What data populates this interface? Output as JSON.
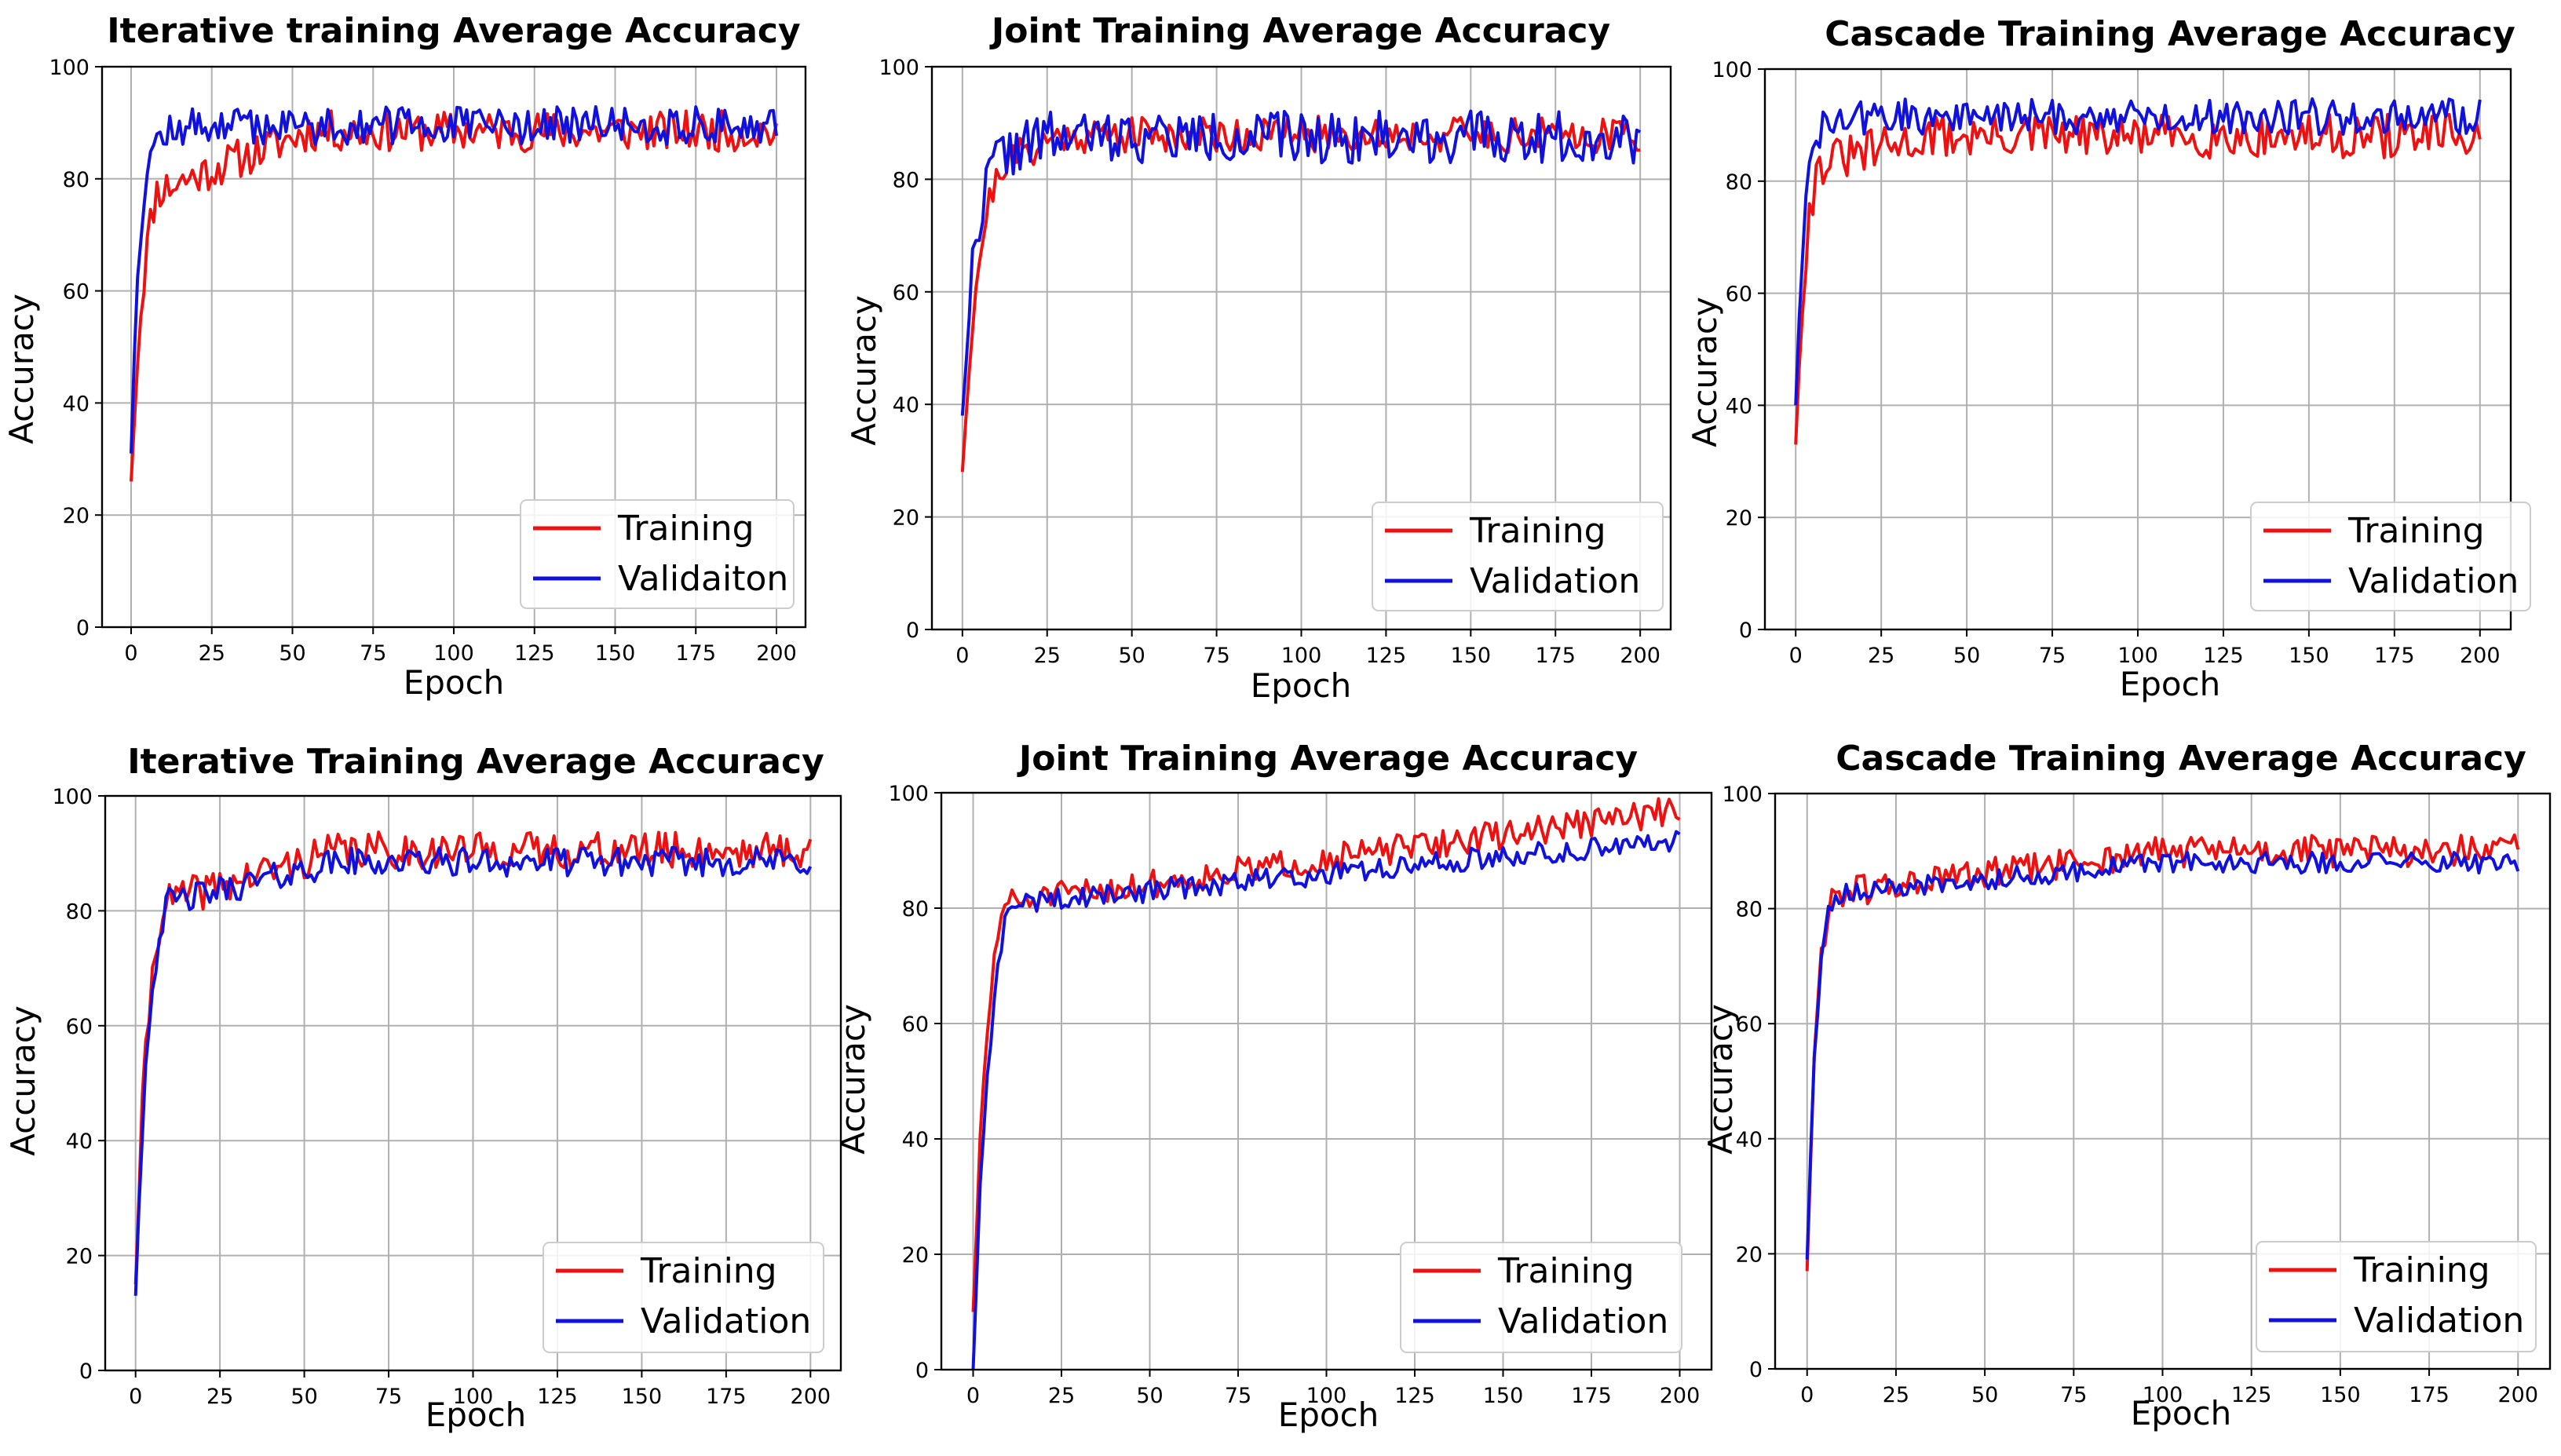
{
  "colors": {
    "training": "#ee1111",
    "validation": "#1111dd"
  },
  "chart_data": [
    {
      "type": "line",
      "title": "Iterative training Average Accuracy",
      "xlabel": "Epoch",
      "ylabel": "Accuracy",
      "xlim": [
        -9,
        209
      ],
      "ylim": [
        0,
        100
      ],
      "xticks": [
        0,
        25,
        50,
        75,
        100,
        125,
        150,
        175,
        200
      ],
      "yticks": [
        0,
        20,
        40,
        60,
        80,
        100
      ],
      "grid": true,
      "legend_position": "lower-right",
      "series": [
        {
          "name": "Training",
          "color": "#ee1111",
          "start": 26,
          "plateau": 88.5,
          "rate": 4.5,
          "early_level": 76,
          "early_span": 55,
          "noise": 2.6,
          "seed": 11
        },
        {
          "name": "Validaiton",
          "color": "#1111dd",
          "start": 31,
          "plateau": 89.5,
          "rate": 2.5,
          "early_level": 86,
          "early_span": 20,
          "noise": 2.4,
          "seed": 12
        }
      ]
    },
    {
      "type": "line",
      "title": "Joint Training Average Accuracy",
      "xlabel": "Epoch",
      "ylabel": "Accuracy",
      "xlim": [
        -9,
        209
      ],
      "ylim": [
        0,
        100
      ],
      "xticks": [
        0,
        25,
        50,
        75,
        100,
        125,
        150,
        175,
        200
      ],
      "yticks": [
        0,
        20,
        40,
        60,
        80,
        100
      ],
      "grid": true,
      "legend_position": "lower-right",
      "series": [
        {
          "name": "Training",
          "color": "#ee1111",
          "start": 28,
          "plateau": 88,
          "rate": 5,
          "early_level": 80,
          "early_span": 30,
          "noise": 2.3,
          "seed": 21
        },
        {
          "name": "Validation",
          "color": "#1111dd",
          "start": 38,
          "plateau": 87.5,
          "rate": 4,
          "early_level": 82,
          "early_span": 25,
          "noise": 3.3,
          "seed": 22
        }
      ]
    },
    {
      "type": "line",
      "title": "Cascade Training Average Accuracy",
      "xlabel": "Epoch",
      "ylabel": "Accuracy",
      "xlim": [
        -9,
        209
      ],
      "ylim": [
        0,
        100
      ],
      "xticks": [
        0,
        25,
        50,
        75,
        100,
        125,
        150,
        175,
        200
      ],
      "yticks": [
        0,
        20,
        40,
        60,
        80,
        100
      ],
      "grid": true,
      "legend_position": "lower-right",
      "series": [
        {
          "name": "Training",
          "color": "#ee1111",
          "start": 33,
          "plateau": 88,
          "rate": 3,
          "early_level": 82,
          "early_span": 40,
          "noise": 2.8,
          "seed": 31
        },
        {
          "name": "Validation",
          "color": "#1111dd",
          "start": 40,
          "plateau": 91.5,
          "rate": 2.5,
          "early_level": 88,
          "early_span": 20,
          "noise": 2.3,
          "seed": 32
        }
      ]
    },
    {
      "type": "line",
      "title": "Iterative Training Average Accuracy",
      "xlabel": "Epoch",
      "ylabel": "Accuracy",
      "xlim": [
        -9,
        209
      ],
      "ylim": [
        0,
        100
      ],
      "xticks": [
        0,
        25,
        50,
        75,
        100,
        125,
        150,
        175,
        200
      ],
      "yticks": [
        0,
        20,
        40,
        60,
        80,
        100
      ],
      "grid": true,
      "legend_position": "lower-right",
      "series": [
        {
          "name": "Training",
          "color": "#ee1111",
          "start": 15,
          "plateau": 90.5,
          "rate": 4,
          "early_level": 80,
          "early_span": 60,
          "noise": 2.3,
          "seed": 41
        },
        {
          "name": "Validation",
          "color": "#1111dd",
          "start": 13,
          "plateau": 88.5,
          "rate": 4,
          "early_level": 80,
          "early_span": 60,
          "noise": 1.8,
          "seed": 42
        }
      ]
    },
    {
      "type": "line",
      "title": "Joint Training Average Accuracy",
      "xlabel": "Epoch",
      "ylabel": "Accuracy",
      "xlim": [
        -9,
        209
      ],
      "ylim": [
        0,
        100
      ],
      "xticks": [
        0,
        25,
        50,
        75,
        100,
        125,
        150,
        175,
        200
      ],
      "yticks": [
        0,
        20,
        40,
        60,
        80,
        100
      ],
      "grid": true,
      "legend_position": "lower-right",
      "series": [
        {
          "name": "Training",
          "color": "#ee1111",
          "start": 10,
          "plateau": 97,
          "rate": 5,
          "early_level": 80,
          "early_span": 200,
          "noise": 1.8,
          "seed": 51
        },
        {
          "name": "Validation",
          "color": "#1111dd",
          "start": 0,
          "plateau": 92,
          "rate": 5,
          "early_level": 80,
          "early_span": 200,
          "noise": 1.4,
          "seed": 52
        }
      ]
    },
    {
      "type": "line",
      "title": "Cascade Training Average Accuracy",
      "xlabel": "Epoch",
      "ylabel": "Accuracy",
      "xlim": [
        -9,
        209
      ],
      "ylim": [
        0,
        100
      ],
      "xticks": [
        0,
        25,
        50,
        75,
        100,
        125,
        150,
        175,
        200
      ],
      "yticks": [
        0,
        20,
        40,
        60,
        80,
        100
      ],
      "grid": true,
      "legend_position": "lower-right",
      "series": [
        {
          "name": "Training",
          "color": "#ee1111",
          "start": 17,
          "plateau": 90,
          "rate": 3,
          "early_level": 82,
          "early_span": 100,
          "noise": 2.0,
          "seed": 61
        },
        {
          "name": "Validation",
          "color": "#1111dd",
          "start": 19,
          "plateau": 88,
          "rate": 3,
          "early_level": 82,
          "early_span": 100,
          "noise": 1.3,
          "seed": 62
        }
      ]
    }
  ]
}
